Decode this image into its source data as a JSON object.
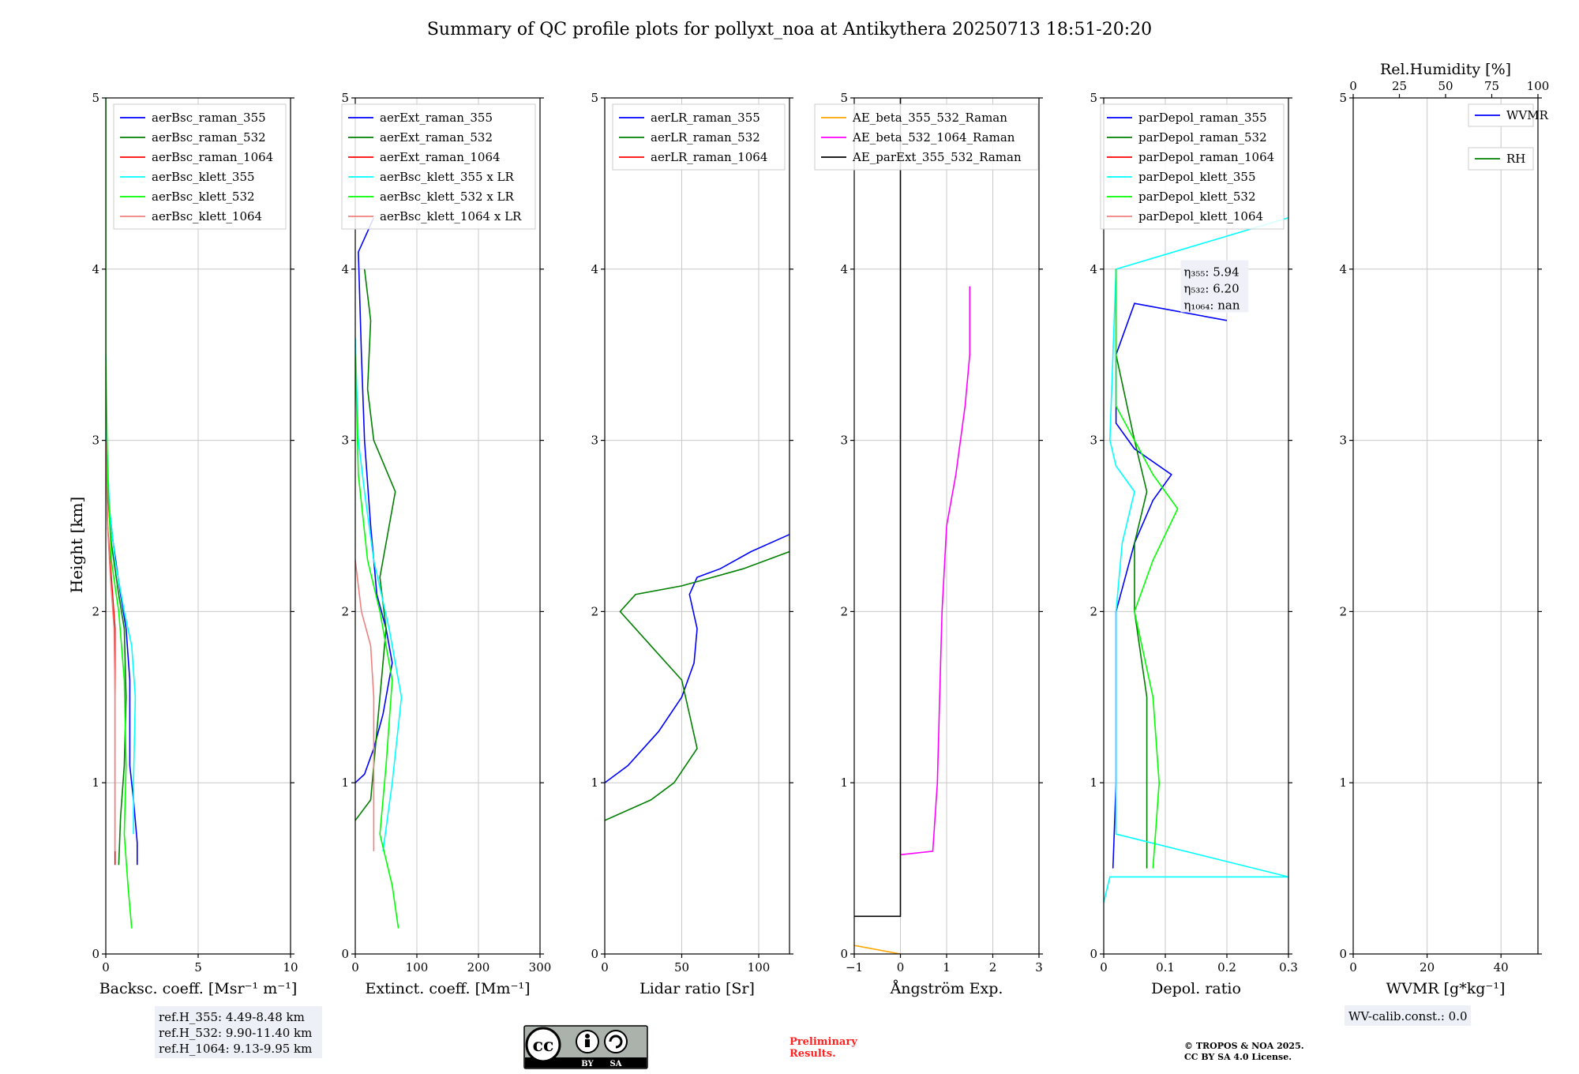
{
  "title": "Summary of QC profile plots for pollyxt_noa at Antikythera 20250713 18:51-20:20",
  "ylabel": "Height [km]",
  "y_ticks": [
    0,
    1,
    2,
    3,
    4,
    5
  ],
  "ref_heights": [
    "ref.H_355: 4.49-8.48 km",
    "ref.H_532: 9.90-11.40 km",
    "ref.H_1064: 9.13-9.95 km"
  ],
  "wv_calib": "WV-calib.const.: 0.0",
  "preliminary": [
    "Preliminary",
    "Results."
  ],
  "copyright": [
    "© TROPOS & NOA 2025.",
    "CC BY SA 4.0 License."
  ],
  "license_badge": {
    "by": "BY",
    "sa": "SA"
  },
  "colors": {
    "blue": "#0000ff",
    "green": "#008000",
    "red": "#ff0000",
    "cyan": "#00ffff",
    "lime": "#00ff00",
    "salmon": "#f08080",
    "orange": "#ffa500",
    "magenta": "#ff00ff",
    "black": "#000000"
  },
  "chart_data": [
    {
      "type": "line",
      "xlabel": "Backsc. coeff. [Msr⁻¹ m⁻¹]",
      "xlim": [
        0,
        10
      ],
      "ylim": [
        0,
        5
      ],
      "x_ticks": [
        0,
        5,
        10
      ],
      "grid": true,
      "legend": "top-right",
      "series": [
        {
          "name": "aerBsc_raman_355",
          "color": "blue",
          "points": [
            [
              1.7,
              0.52
            ],
            [
              1.7,
              0.65
            ],
            [
              1.5,
              0.9
            ],
            [
              1.3,
              1.1
            ],
            [
              1.3,
              1.6
            ],
            [
              1.1,
              1.9
            ],
            [
              0.8,
              2.1
            ],
            [
              0.4,
              2.4
            ],
            [
              0.1,
              2.7
            ],
            [
              0,
              3.2
            ]
          ]
        },
        {
          "name": "aerBsc_raman_532",
          "color": "green",
          "points": [
            [
              0.7,
              0.52
            ],
            [
              0.8,
              0.8
            ],
            [
              1.0,
              1.1
            ],
            [
              1.1,
              1.5
            ],
            [
              1.0,
              1.9
            ],
            [
              0.7,
              2.1
            ],
            [
              0.3,
              2.4
            ],
            [
              0.1,
              2.7
            ],
            [
              0,
              3.2
            ]
          ]
        },
        {
          "name": "aerBsc_raman_1064",
          "color": "red",
          "points": [
            [
              0.5,
              0.52
            ],
            [
              0.5,
              1.0
            ],
            [
              0.5,
              1.5
            ],
            [
              0.5,
              1.9
            ],
            [
              0.3,
              2.2
            ],
            [
              0.1,
              2.5
            ],
            [
              0,
              3.2
            ]
          ]
        },
        {
          "name": "aerBsc_klett_355",
          "color": "cyan",
          "points": [
            [
              1.5,
              0.7
            ],
            [
              1.5,
              1.0
            ],
            [
              1.6,
              1.5
            ],
            [
              1.4,
              1.8
            ],
            [
              1.0,
              2.0
            ],
            [
              0.5,
              2.3
            ],
            [
              0.2,
              2.6
            ],
            [
              0.05,
              3.0
            ],
            [
              0,
              3.5
            ]
          ]
        },
        {
          "name": "aerBsc_klett_532",
          "color": "lime",
          "points": [
            [
              1.4,
              0.15
            ],
            [
              1.2,
              0.4
            ],
            [
              1.0,
              0.7
            ],
            [
              1.1,
              1.1
            ],
            [
              1.0,
              1.6
            ],
            [
              0.7,
              2.0
            ],
            [
              0.3,
              2.3
            ],
            [
              0.1,
              2.8
            ],
            [
              0,
              3.5
            ],
            [
              0,
              5.0
            ]
          ]
        },
        {
          "name": "aerBsc_klett_1064",
          "color": "salmon",
          "points": [
            [
              0.5,
              0.6
            ],
            [
              0.5,
              1.0
            ],
            [
              0.5,
              1.5
            ],
            [
              0.45,
              1.9
            ],
            [
              0.25,
              2.2
            ],
            [
              0.1,
              2.5
            ],
            [
              0,
              3.0
            ]
          ]
        }
      ]
    },
    {
      "type": "line",
      "xlabel": "Extinct. coeff. [Mm⁻¹]",
      "xlim": [
        0,
        300
      ],
      "ylim": [
        0,
        5
      ],
      "x_ticks": [
        0,
        100,
        200,
        300
      ],
      "grid": true,
      "legend": "top-right",
      "series": [
        {
          "name": "aerExt_raman_355",
          "color": "blue",
          "points": [
            [
              0,
              1.0
            ],
            [
              15,
              1.05
            ],
            [
              30,
              1.2
            ],
            [
              45,
              1.4
            ],
            [
              60,
              1.7
            ],
            [
              50,
              1.9
            ],
            [
              35,
              2.1
            ],
            [
              25,
              2.5
            ],
            [
              15,
              3.0
            ],
            [
              10,
              3.5
            ],
            [
              5,
              4.1
            ],
            [
              30,
              4.3
            ]
          ]
        },
        {
          "name": "aerExt_raman_532",
          "color": "green",
          "points": [
            [
              0,
              0.78
            ],
            [
              25,
              0.9
            ],
            [
              30,
              1.1
            ],
            [
              40,
              1.5
            ],
            [
              50,
              1.9
            ],
            [
              40,
              2.2
            ],
            [
              55,
              2.5
            ],
            [
              65,
              2.7
            ],
            [
              30,
              3.0
            ],
            [
              20,
              3.3
            ],
            [
              25,
              3.7
            ],
            [
              15,
              4.0
            ]
          ]
        },
        {
          "name": "aerExt_raman_1064",
          "color": "red",
          "points": []
        },
        {
          "name": "aerBsc_klett_355 x LR",
          "color": "cyan",
          "points": [
            [
              45,
              0.6
            ],
            [
              60,
              1.0
            ],
            [
              75,
              1.5
            ],
            [
              55,
              1.9
            ],
            [
              30,
              2.3
            ],
            [
              15,
              2.7
            ],
            [
              5,
              3.0
            ],
            [
              0,
              3.6
            ]
          ]
        },
        {
          "name": "aerBsc_klett_532 x LR",
          "color": "lime",
          "points": [
            [
              70,
              0.15
            ],
            [
              60,
              0.4
            ],
            [
              40,
              0.7
            ],
            [
              50,
              1.1
            ],
            [
              60,
              1.6
            ],
            [
              40,
              2.0
            ],
            [
              20,
              2.3
            ],
            [
              5,
              2.8
            ],
            [
              0,
              3.5
            ]
          ]
        },
        {
          "name": "aerBsc_klett_1064 x LR",
          "color": "salmon",
          "points": [
            [
              30,
              0.6
            ],
            [
              30,
              1.0
            ],
            [
              30,
              1.5
            ],
            [
              25,
              1.8
            ],
            [
              10,
              2.0
            ],
            [
              0,
              2.3
            ]
          ]
        }
      ]
    },
    {
      "type": "line",
      "xlabel": "Lidar ratio [Sr]",
      "xlim": [
        0,
        120
      ],
      "ylim": [
        0,
        5
      ],
      "x_ticks": [
        0,
        50,
        100
      ],
      "grid": true,
      "legend": "top-right",
      "series": [
        {
          "name": "aerLR_raman_355",
          "color": "blue",
          "points": [
            [
              0,
              1.0
            ],
            [
              15,
              1.1
            ],
            [
              35,
              1.3
            ],
            [
              50,
              1.5
            ],
            [
              58,
              1.7
            ],
            [
              60,
              1.9
            ],
            [
              55,
              2.1
            ],
            [
              60,
              2.2
            ],
            [
              75,
              2.25
            ],
            [
              95,
              2.35
            ],
            [
              120,
              2.45
            ]
          ]
        },
        {
          "name": "aerLR_raman_532",
          "color": "green",
          "points": [
            [
              0,
              0.78
            ],
            [
              30,
              0.9
            ],
            [
              45,
              1.0
            ],
            [
              60,
              1.2
            ],
            [
              55,
              1.4
            ],
            [
              50,
              1.6
            ],
            [
              30,
              1.8
            ],
            [
              10,
              2.0
            ],
            [
              20,
              2.1
            ],
            [
              50,
              2.15
            ],
            [
              90,
              2.25
            ],
            [
              120,
              2.35
            ]
          ]
        },
        {
          "name": "aerLR_raman_1064",
          "color": "red",
          "points": []
        }
      ]
    },
    {
      "type": "line",
      "xlabel": "Ångström Exp.",
      "xlim": [
        -1,
        3
      ],
      "ylim": [
        0,
        5
      ],
      "x_ticks": [
        -1,
        0,
        1,
        2,
        3
      ],
      "grid": true,
      "legend": "top-left",
      "series": [
        {
          "name": "AE_beta_355_532_Raman",
          "color": "orange",
          "points": [
            [
              -1,
              0.05
            ],
            [
              0,
              0.0
            ]
          ]
        },
        {
          "name": "AE_beta_532_1064_Raman",
          "color": "magenta",
          "points": [
            [
              0,
              0.58
            ],
            [
              0.7,
              0.6
            ],
            [
              0.8,
              1.0
            ],
            [
              0.85,
              1.5
            ],
            [
              0.9,
              2.0
            ],
            [
              1.0,
              2.5
            ],
            [
              1.2,
              2.8
            ],
            [
              1.4,
              3.2
            ],
            [
              1.5,
              3.5
            ],
            [
              1.5,
              3.9
            ]
          ]
        },
        {
          "name": "AE_parExt_355_532_Raman",
          "color": "black",
          "points": [
            [
              -1,
              0.22
            ],
            [
              0,
              0.22
            ],
            [
              0,
              0.58
            ],
            [
              0,
              3.95
            ],
            [
              0,
              5.0
            ]
          ]
        }
      ]
    },
    {
      "type": "line",
      "xlabel": "Depol. ratio",
      "xlim": [
        0,
        0.3
      ],
      "ylim": [
        0,
        5
      ],
      "x_ticks": [
        0.0,
        0.1,
        0.2,
        0.3
      ],
      "grid": true,
      "legend": "top-right",
      "annotations": [
        "η₃₅₅: 5.94",
        "η₅₃₂: 6.20",
        "η₁₀₆₄: nan"
      ],
      "series": [
        {
          "name": "parDepol_raman_355",
          "color": "blue",
          "points": [
            [
              0.015,
              0.5
            ],
            [
              0.02,
              1.0
            ],
            [
              0.02,
              1.5
            ],
            [
              0.02,
              2.0
            ],
            [
              0.05,
              2.4
            ],
            [
              0.08,
              2.65
            ],
            [
              0.11,
              2.8
            ],
            [
              0.05,
              2.95
            ],
            [
              0.02,
              3.1
            ],
            [
              0.02,
              3.5
            ],
            [
              0.05,
              3.8
            ],
            [
              0.2,
              3.7
            ]
          ]
        },
        {
          "name": "parDepol_raman_532",
          "color": "green",
          "points": [
            [
              0.07,
              0.5
            ],
            [
              0.07,
              1.0
            ],
            [
              0.07,
              1.5
            ],
            [
              0.05,
              2.0
            ],
            [
              0.05,
              2.4
            ],
            [
              0.07,
              2.7
            ],
            [
              0.05,
              3.0
            ],
            [
              0.02,
              3.5
            ],
            [
              0.02,
              4.0
            ]
          ]
        },
        {
          "name": "parDepol_raman_1064",
          "color": "red",
          "points": []
        },
        {
          "name": "parDepol_klett_355",
          "color": "cyan",
          "points": [
            [
              0.0,
              0.3
            ],
            [
              0.01,
              0.45
            ],
            [
              0.3,
              0.45
            ],
            [
              0.02,
              0.7
            ],
            [
              0.02,
              1.5
            ],
            [
              0.02,
              2.0
            ],
            [
              0.03,
              2.4
            ],
            [
              0.05,
              2.7
            ],
            [
              0.02,
              2.85
            ],
            [
              0.01,
              3.0
            ],
            [
              0.02,
              4.0
            ],
            [
              0.3,
              4.3
            ]
          ]
        },
        {
          "name": "parDepol_klett_532",
          "color": "lime",
          "points": [
            [
              0.08,
              0.5
            ],
            [
              0.09,
              1.0
            ],
            [
              0.08,
              1.5
            ],
            [
              0.05,
              2.0
            ],
            [
              0.08,
              2.3
            ],
            [
              0.12,
              2.6
            ],
            [
              0.08,
              2.8
            ],
            [
              0.02,
              3.2
            ],
            [
              0.02,
              4.0
            ]
          ]
        },
        {
          "name": "parDepol_klett_1064",
          "color": "salmon",
          "points": []
        }
      ]
    },
    {
      "type": "line",
      "xlabel": "WVMR [g*kg⁻¹]",
      "x2label": "Rel.Humidity [%]",
      "xlim": [
        0,
        50
      ],
      "x2lim": [
        0,
        100
      ],
      "ylim": [
        0,
        5
      ],
      "x_ticks": [
        0,
        20,
        40
      ],
      "x2_ticks": [
        0,
        25,
        50,
        75,
        100
      ],
      "grid": true,
      "legend": "top-right",
      "series": [
        {
          "name": "WVMR",
          "color": "blue",
          "points": []
        },
        {
          "name": "RH",
          "color": "green",
          "points": []
        }
      ]
    }
  ]
}
